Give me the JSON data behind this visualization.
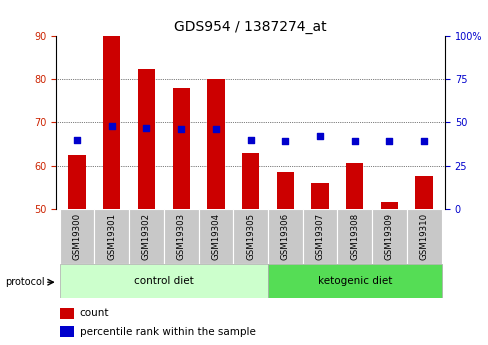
{
  "title": "GDS954 / 1387274_at",
  "samples": [
    "GSM19300",
    "GSM19301",
    "GSM19302",
    "GSM19303",
    "GSM19304",
    "GSM19305",
    "GSM19306",
    "GSM19307",
    "GSM19308",
    "GSM19309",
    "GSM19310"
  ],
  "red_values": [
    62.5,
    90.0,
    82.5,
    78.0,
    80.0,
    63.0,
    58.5,
    56.0,
    60.5,
    51.5,
    57.5
  ],
  "blue_values": [
    40,
    48,
    47,
    46,
    46,
    40,
    39,
    42,
    39,
    39,
    39
  ],
  "ylim_left": [
    50,
    90
  ],
  "ylim_right": [
    0,
    100
  ],
  "yticks_left": [
    50,
    60,
    70,
    80,
    90
  ],
  "yticks_right": [
    0,
    25,
    50,
    75,
    100
  ],
  "ytick_labels_right": [
    "0",
    "25",
    "50",
    "75",
    "100%"
  ],
  "bar_color": "#cc0000",
  "dot_color": "#0000cc",
  "bar_width": 0.5,
  "control_label": "control diet",
  "ketogenic_label": "ketogenic diet",
  "protocol_label": "protocol",
  "legend_count": "count",
  "legend_percentile": "percentile rank within the sample",
  "bg_control": "#ccffcc",
  "bg_ketogenic": "#55dd55",
  "title_fontsize": 10,
  "tick_fontsize": 7,
  "label_fontsize": 7.5
}
